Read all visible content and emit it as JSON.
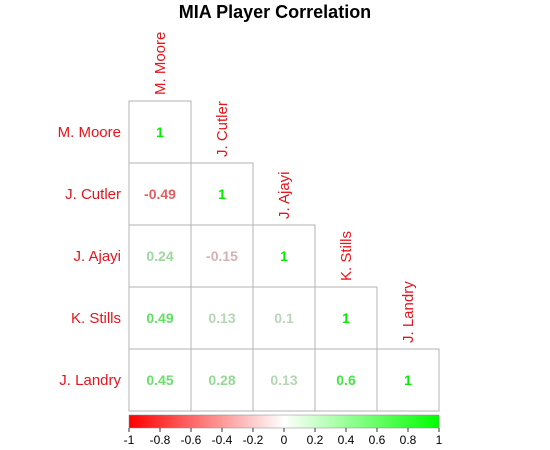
{
  "chart_data": {
    "type": "heatmap",
    "title": "MIA Player Correlation",
    "players": [
      "M. Moore",
      "J. Cutler",
      "J. Ajayi",
      "K. Stills",
      "J. Landry"
    ],
    "layout": "lower-triangle",
    "matrix": [
      [
        1
      ],
      [
        -0.49,
        1
      ],
      [
        0.24,
        -0.15,
        1
      ],
      [
        0.49,
        0.13,
        0.1,
        1
      ],
      [
        0.45,
        0.28,
        0.13,
        0.6,
        1
      ]
    ],
    "value_labels": [
      [
        "1"
      ],
      [
        "-0.49",
        "1"
      ],
      [
        "0.24",
        "-0.15",
        "1"
      ],
      [
        "0.49",
        "0.13",
        "0.1",
        "1"
      ],
      [
        "0.45",
        "0.28",
        "0.13",
        "0.6",
        "1"
      ]
    ],
    "colorbar": {
      "range": [
        -1,
        1
      ],
      "ticks": [
        -1,
        -0.8,
        -0.6,
        -0.4,
        -0.2,
        0,
        0.2,
        0.4,
        0.6,
        0.8,
        1
      ],
      "tick_labels": [
        "-1",
        "-0.8",
        "-0.6",
        "-0.4",
        "-0.2",
        "0",
        "0.2",
        "0.4",
        "0.6",
        "0.8",
        "1"
      ],
      "low_color": "#ff0000",
      "mid_color": "#ffffff",
      "high_color": "#00ff00"
    },
    "label_color": "#e8141c",
    "grid": true
  }
}
